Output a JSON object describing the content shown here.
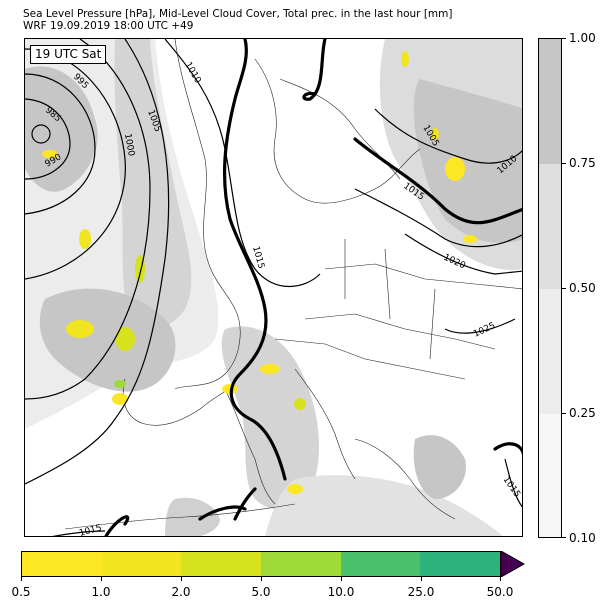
{
  "title_line1": "Sea Level Pressure [hPa], Mid-Level Cloud Cover, Total prec. in the last hour [mm]",
  "title_line2": "WRF 19.09.2019 18:00 UTC +49",
  "time_label": "19 UTC Sat",
  "isobar_labels": [
    "985",
    "990",
    "995",
    "1000",
    "1005",
    "1010",
    "1005",
    "1010",
    "1015",
    "1015",
    "1015",
    "1020",
    "1025",
    "1015"
  ],
  "cloud_colorbar": {
    "ticks": [
      "1.00",
      "0.75",
      "0.50",
      "0.25",
      "0.10"
    ],
    "colors": [
      "#c6c6c6",
      "#dedede",
      "#ececec",
      "#f6f6f6"
    ]
  },
  "precip_colorbar": {
    "ticks": [
      "0.5",
      "1.0",
      "2.0",
      "5.0",
      "10.0",
      "25.0",
      "50.0"
    ],
    "colors": [
      "#fde725",
      "#f0e51f",
      "#d6e21d",
      "#a0da39",
      "#4ac16d",
      "#2db27d",
      "#3e4c8a"
    ],
    "extend_color": "#440154"
  }
}
